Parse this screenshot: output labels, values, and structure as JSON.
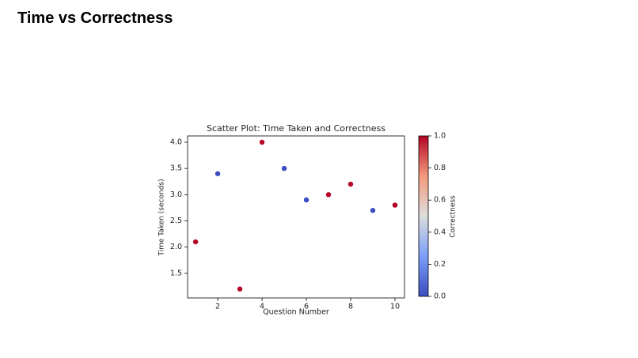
{
  "header": {
    "title": "Time vs Correctness"
  },
  "chart_data": {
    "type": "scatter",
    "title": "Scatter Plot: Time Taken and Correctness",
    "xlabel": "Question Number",
    "ylabel": "Time Taken (seconds)",
    "x": [
      1,
      2,
      3,
      4,
      5,
      6,
      7,
      8,
      9,
      10
    ],
    "values": [
      2.1,
      3.4,
      1.2,
      4.0,
      3.5,
      2.9,
      3.0,
      3.2,
      2.7,
      2.8
    ],
    "correctness": [
      1,
      0,
      1,
      1,
      0,
      0,
      1,
      1,
      0,
      1
    ],
    "colormap_colors": [
      "#3b4cc0",
      "#7b9ff9",
      "#dddddd",
      "#f49a7b",
      "#b40426"
    ],
    "colorbar_label": "Correctness",
    "colorbar_lim": [
      0,
      1
    ],
    "colorbar_ticks": [
      {
        "value": 0,
        "label": "0.0"
      },
      0.2,
      0.4,
      0.6,
      0.8,
      {
        "value": 1,
        "label": "1.0"
      }
    ],
    "xlim": [
      0.64,
      10.43
    ],
    "ylim": [
      1.03,
      4.12
    ],
    "xticks": [
      2,
      4,
      6,
      8,
      10
    ],
    "yticks": [
      1.5,
      {
        "value": 2,
        "label": "2.0"
      },
      2.5,
      {
        "value": 3,
        "label": "3.0"
      },
      3.5,
      {
        "value": 4,
        "label": "4.0"
      }
    ],
    "grid": false
  }
}
